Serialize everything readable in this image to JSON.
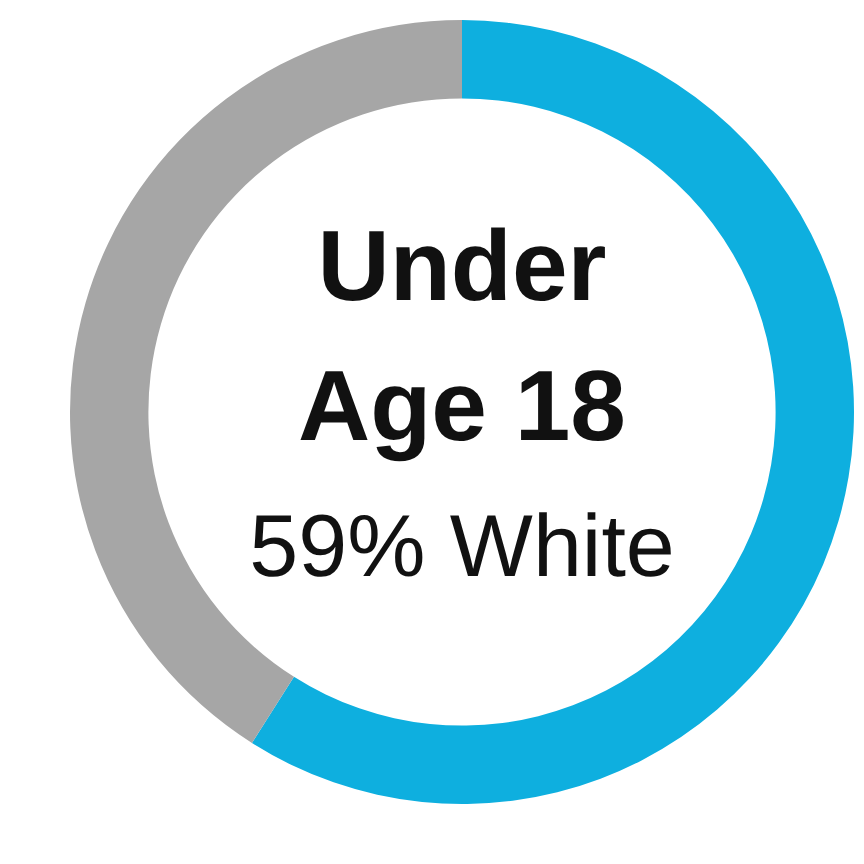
{
  "chart_data": {
    "type": "donut",
    "title": "Under Age 18",
    "categories": [
      null,
      null
    ],
    "values": [
      59,
      41
    ],
    "colors": [
      "#0eafdf",
      "#a6a6a6"
    ],
    "annotations": [
      "59% White"
    ],
    "legend": false
  }
}
